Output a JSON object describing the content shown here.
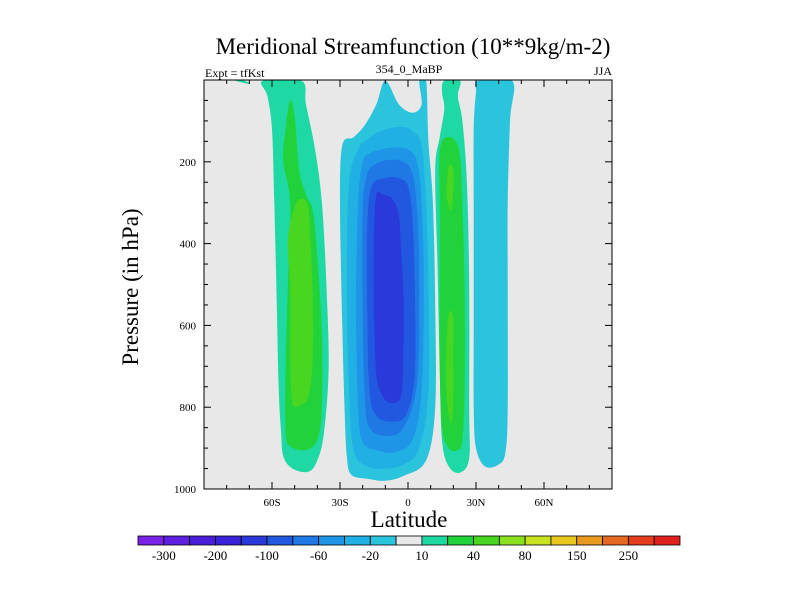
{
  "chart_data": {
    "type": "contour",
    "title": "Meridional Streamfunction (10**9kg/m-2)",
    "subtitle_left": "Expt = tfKst",
    "subtitle_center": "354_0_MaBP",
    "subtitle_right": "JJA",
    "xlabel": "Latitude",
    "ylabel": "Pressure (in hPa)",
    "xlim": [
      -90,
      90
    ],
    "ylim": [
      1000,
      0
    ],
    "x_ticks": [
      {
        "value": -60,
        "label": "60S"
      },
      {
        "value": -30,
        "label": "30S"
      },
      {
        "value": 0,
        "label": "0"
      },
      {
        "value": 30,
        "label": "30N"
      },
      {
        "value": 60,
        "label": "60N"
      }
    ],
    "y_ticks": [
      {
        "value": 200,
        "label": "200"
      },
      {
        "value": 400,
        "label": "400"
      },
      {
        "value": 600,
        "label": "600"
      },
      {
        "value": 800,
        "label": "800"
      },
      {
        "value": 1000,
        "label": "1000"
      }
    ],
    "background_color": "#e8e8e8",
    "levels": [
      -300,
      -250,
      -200,
      -150,
      -100,
      -80,
      -60,
      -40,
      -20,
      -10,
      10,
      20,
      40,
      60,
      80,
      100,
      150,
      200,
      250,
      300
    ],
    "colors": [
      "#7a22e6",
      "#5d1ee0",
      "#4a1ed8",
      "#3a22d8",
      "#2a3ad8",
      "#2257e0",
      "#1f78e4",
      "#1f95e8",
      "#21b0e4",
      "#2ac4dc",
      "#e8e8e8",
      "#1fd9a4",
      "#21d23a",
      "#48d621",
      "#8ae21f",
      "#c8e21f",
      "#e8c81f",
      "#e89a1f",
      "#e4681f",
      "#e43c1f",
      "#e01f1f"
    ],
    "colorbar_labels": [
      {
        "after_level_index": 0,
        "label": "-300"
      },
      {
        "after_level_index": 2,
        "label": "-200"
      },
      {
        "after_level_index": 4,
        "label": "-100"
      },
      {
        "after_level_index": 6,
        "label": "-60"
      },
      {
        "after_level_index": 8,
        "label": "-20"
      },
      {
        "after_level_index": 10,
        "label": "10"
      },
      {
        "after_level_index": 12,
        "label": "40"
      },
      {
        "after_level_index": 14,
        "label": "80"
      },
      {
        "after_level_index": 16,
        "label": "150"
      },
      {
        "after_level_index": 18,
        "label": "250"
      }
    ],
    "regions": [
      {
        "id": "sh-ferrel-outer",
        "value_range": [
          10,
          20
        ],
        "points": [
          [
            -76,
            2
          ],
          [
            -70,
            10
          ],
          [
            -72,
            2
          ]
        ]
      },
      {
        "id": "sh-ferrel-main",
        "value_range": [
          10,
          20
        ],
        "points": [
          [
            -64,
            2
          ],
          [
            -62,
            40
          ],
          [
            -60,
            120
          ],
          [
            -59,
            300
          ],
          [
            -58,
            520
          ],
          [
            -57,
            760
          ],
          [
            -56,
            860
          ],
          [
            -55,
            920
          ],
          [
            -51,
            950
          ],
          [
            -44,
            958
          ],
          [
            -40,
            930
          ],
          [
            -37,
            860
          ],
          [
            -35,
            700
          ],
          [
            -36,
            500
          ],
          [
            -38,
            300
          ],
          [
            -41,
            170
          ],
          [
            -45,
            60
          ],
          [
            -47,
            2
          ]
        ]
      },
      {
        "id": "sh-ferrel-mid",
        "value_range": [
          20,
          40
        ],
        "points": [
          [
            -55,
            200
          ],
          [
            -52,
            300
          ],
          [
            -53,
            500
          ],
          [
            -54,
            700
          ],
          [
            -54,
            860
          ],
          [
            -52,
            895
          ],
          [
            -45,
            905
          ],
          [
            -40,
            880
          ],
          [
            -38,
            800
          ],
          [
            -38,
            620
          ],
          [
            -40,
            430
          ],
          [
            -42,
            320
          ],
          [
            -45,
            280
          ],
          [
            -48,
            220
          ],
          [
            -50,
            90
          ],
          [
            -52,
            50
          ],
          [
            -54,
            120
          ]
        ]
      },
      {
        "id": "sh-ferrel-core",
        "value_range": [
          40,
          60
        ],
        "points": [
          [
            -53,
            390
          ],
          [
            -52,
            520
          ],
          [
            -52,
            690
          ],
          [
            -51,
            790
          ],
          [
            -48,
            795
          ],
          [
            -44,
            775
          ],
          [
            -42,
            680
          ],
          [
            -42,
            530
          ],
          [
            -43,
            400
          ],
          [
            -44,
            310
          ],
          [
            -47,
            290
          ],
          [
            -50,
            310
          ]
        ]
      },
      {
        "id": "nh-hadley-outer",
        "value_range": [
          10,
          20
        ],
        "points": [
          [
            16,
            2
          ],
          [
            15,
            30
          ],
          [
            16,
            70
          ],
          [
            14,
            140
          ],
          [
            12,
            220
          ],
          [
            13,
            450
          ],
          [
            14,
            700
          ],
          [
            15,
            880
          ],
          [
            18,
            945
          ],
          [
            23,
            960
          ],
          [
            27,
            925
          ],
          [
            27,
            800
          ],
          [
            27,
            500
          ],
          [
            26,
            250
          ],
          [
            24,
            100
          ],
          [
            22,
            40
          ],
          [
            23,
            2
          ]
        ]
      },
      {
        "id": "nh-hadley-mid",
        "value_range": [
          20,
          40
        ],
        "points": [
          [
            14,
            175
          ],
          [
            14,
            320
          ],
          [
            14,
            500
          ],
          [
            14,
            700
          ],
          [
            15,
            850
          ],
          [
            18,
            900
          ],
          [
            22,
            905
          ],
          [
            24,
            880
          ],
          [
            25,
            750
          ],
          [
            25,
            520
          ],
          [
            24,
            300
          ],
          [
            23,
            190
          ],
          [
            21,
            150
          ],
          [
            17,
            140
          ]
        ]
      },
      {
        "id": "nh-hadley-core",
        "value_range": [
          40,
          60
        ],
        "points": [
          [
            18,
            210
          ],
          [
            17,
            280
          ],
          [
            19,
            320
          ],
          [
            20,
            270
          ],
          [
            20,
            220
          ]
        ]
      },
      {
        "id": "nh-hadley-core-low",
        "value_range": [
          40,
          60
        ],
        "points": [
          [
            18,
            570
          ],
          [
            17,
            650
          ],
          [
            17,
            770
          ],
          [
            19,
            840
          ],
          [
            20,
            780
          ],
          [
            20,
            660
          ],
          [
            20,
            580
          ]
        ]
      },
      {
        "id": "sh-hadley-outer",
        "value_range": [
          -20,
          -10
        ],
        "points": [
          [
            -10,
            2
          ],
          [
            -14,
            60
          ],
          [
            -19,
            110
          ],
          [
            -24,
            140
          ],
          [
            -29,
            160
          ],
          [
            -30,
            300
          ],
          [
            -29,
            600
          ],
          [
            -28,
            800
          ],
          [
            -27,
            920
          ],
          [
            -25,
            965
          ],
          [
            -18,
            975
          ],
          [
            -10,
            980
          ],
          [
            -2,
            968
          ],
          [
            8,
            930
          ],
          [
            12,
            800
          ],
          [
            12,
            550
          ],
          [
            11,
            300
          ],
          [
            9,
            150
          ],
          [
            8,
            2
          ],
          [
            5,
            2
          ],
          [
            6,
            60
          ],
          [
            2,
            80
          ],
          [
            -4,
            60
          ]
        ]
      },
      {
        "id": "sh-hadley-band1",
        "value_range": [
          -40,
          -20
        ],
        "points": [
          [
            -22,
            170
          ],
          [
            -26,
            250
          ],
          [
            -27,
            500
          ],
          [
            -26,
            760
          ],
          [
            -24,
            905
          ],
          [
            -18,
            945
          ],
          [
            -10,
            950
          ],
          [
            -2,
            940
          ],
          [
            5,
            900
          ],
          [
            9,
            760
          ],
          [
            9,
            500
          ],
          [
            8,
            300
          ],
          [
            6,
            160
          ],
          [
            2,
            125
          ],
          [
            -2,
            115
          ],
          [
            -8,
            118
          ],
          [
            -14,
            130
          ],
          [
            -19,
            150
          ]
        ]
      },
      {
        "id": "sh-hadley-band2",
        "value_range": [
          -60,
          -40
        ],
        "points": [
          [
            -20,
            200
          ],
          [
            -22,
            300
          ],
          [
            -23,
            550
          ],
          [
            -22,
            800
          ],
          [
            -20,
            885
          ],
          [
            -14,
            905
          ],
          [
            -6,
            910
          ],
          [
            2,
            880
          ],
          [
            6,
            760
          ],
          [
            7,
            500
          ],
          [
            6,
            300
          ],
          [
            4,
            200
          ],
          [
            0,
            170
          ],
          [
            -6,
            165
          ],
          [
            -12,
            170
          ],
          [
            -17,
            180
          ]
        ]
      },
      {
        "id": "sh-hadley-band3",
        "value_range": [
          -80,
          -60
        ],
        "points": [
          [
            -18,
            230
          ],
          [
            -20,
            320
          ],
          [
            -20,
            560
          ],
          [
            -19,
            780
          ],
          [
            -17,
            850
          ],
          [
            -10,
            870
          ],
          [
            -2,
            850
          ],
          [
            4,
            740
          ],
          [
            5,
            500
          ],
          [
            4,
            320
          ],
          [
            2,
            230
          ],
          [
            -2,
            200
          ],
          [
            -8,
            195
          ],
          [
            -14,
            205
          ]
        ]
      },
      {
        "id": "sh-hadley-band4",
        "value_range": [
          -100,
          -80
        ],
        "points": [
          [
            -16,
            260
          ],
          [
            -18,
            360
          ],
          [
            -18,
            560
          ],
          [
            -17,
            760
          ],
          [
            -14,
            820
          ],
          [
            -8,
            835
          ],
          [
            -1,
            820
          ],
          [
            3,
            720
          ],
          [
            3,
            500
          ],
          [
            2,
            340
          ],
          [
            0,
            260
          ],
          [
            -4,
            240
          ],
          [
            -10,
            240
          ]
        ]
      },
      {
        "id": "sh-hadley-core",
        "value_range": [
          -150,
          -100
        ],
        "points": [
          [
            -14,
            280
          ],
          [
            -15,
            380
          ],
          [
            -15,
            560
          ],
          [
            -14,
            720
          ],
          [
            -11,
            775
          ],
          [
            -7,
            790
          ],
          [
            -3,
            770
          ],
          [
            -2,
            660
          ],
          [
            -2,
            520
          ],
          [
            -3,
            420
          ],
          [
            -4,
            330
          ],
          [
            -7,
            290
          ],
          [
            -11,
            280
          ]
        ]
      },
      {
        "id": "nh-ferrel-outer",
        "value_range": [
          -20,
          -10
        ],
        "points": [
          [
            31,
            2
          ],
          [
            30,
            30
          ],
          [
            29,
            120
          ],
          [
            29,
            300
          ],
          [
            29,
            600
          ],
          [
            29,
            800
          ],
          [
            30,
            900
          ],
          [
            34,
            945
          ],
          [
            40,
            940
          ],
          [
            43,
            910
          ],
          [
            44,
            800
          ],
          [
            44,
            500
          ],
          [
            44,
            300
          ],
          [
            45,
            100
          ],
          [
            46,
            2
          ]
        ]
      }
    ]
  }
}
